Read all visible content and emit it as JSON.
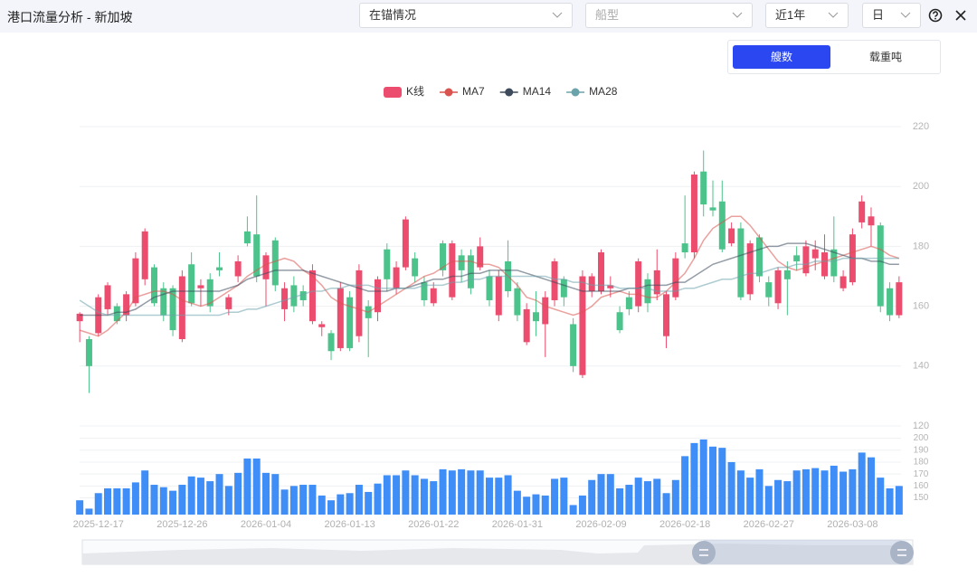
{
  "header": {
    "title": "港口流量分析 - 新加坡",
    "filters": [
      "在锚情况",
      "船型",
      "近1年",
      "日"
    ],
    "toggle": [
      "艘数",
      "载重吨"
    ]
  },
  "chart_data": [
    {
      "type": "candlestick",
      "ylim": [
        120,
        220
      ],
      "yticks": [
        120,
        140,
        160,
        180,
        200,
        220
      ],
      "grid": true,
      "series": [
        {
          "name": "K线",
          "type": "candlestick",
          "up_color": "#ec4c6e",
          "down_color": "#4cc38a",
          "open": [
            155,
            149,
            151,
            159,
            160,
            157,
            161,
            169,
            173,
            166,
            166,
            149,
            174,
            166,
            169,
            173,
            159,
            170,
            185,
            184,
            169,
            182,
            159,
            167,
            165,
            155,
            153,
            151,
            146,
            163,
            150,
            160,
            158,
            179,
            166,
            173,
            176,
            168,
            161,
            181,
            163,
            177,
            177,
            173,
            170,
            157,
            175,
            166,
            148,
            158,
            154,
            162,
            169,
            154,
            137,
            165,
            165,
            166,
            158,
            163,
            160,
            169,
            164,
            150,
            163,
            181,
            178,
            205,
            193,
            195,
            181,
            186,
            164,
            183,
            168,
            161,
            172,
            177,
            171,
            176,
            170,
            179,
            166,
            168,
            188,
            187,
            187,
            166,
            157
          ],
          "close": [
            157.5,
            140,
            163,
            167,
            155,
            164,
            176,
            185,
            161,
            157,
            152,
            170,
            161,
            167,
            160,
            172,
            163,
            175,
            181,
            170,
            177,
            167,
            166,
            160,
            162,
            172,
            154,
            145,
            166,
            146,
            172,
            156,
            169,
            169,
            173,
            189,
            170,
            162,
            166,
            172,
            181,
            172,
            166,
            180,
            162,
            170,
            165,
            157,
            159,
            155,
            163,
            175,
            163,
            140,
            170,
            170,
            178,
            167,
            152,
            159,
            175,
            161,
            172,
            164,
            176,
            178,
            204,
            194,
            192,
            179,
            186,
            163,
            181,
            170,
            163,
            172,
            169,
            175,
            180,
            179,
            178,
            170,
            170,
            184,
            195,
            190,
            160,
            157,
            168
          ],
          "high": [
            158,
            150,
            164,
            168,
            161,
            165,
            178,
            186,
            174,
            168,
            167,
            172,
            178,
            169,
            171,
            178,
            164,
            177,
            190,
            197,
            178,
            183,
            168,
            170,
            167,
            174,
            155,
            152,
            168,
            165,
            174,
            162,
            170,
            181,
            175,
            190,
            178,
            170,
            168,
            182,
            182,
            179,
            179,
            183,
            172,
            172,
            182,
            168,
            161,
            165,
            165,
            176,
            170,
            156,
            172,
            171,
            179,
            170,
            160,
            165,
            176,
            171,
            179,
            165,
            178,
            197,
            205,
            212,
            202,
            202,
            188,
            188,
            182,
            184,
            170,
            173,
            175,
            180,
            182,
            182,
            184,
            190,
            172,
            186,
            197,
            193,
            188,
            168,
            170
          ],
          "low": [
            148,
            131,
            150,
            157,
            154,
            155,
            160,
            167,
            160,
            155,
            150,
            148,
            160,
            160,
            158,
            170,
            157,
            168,
            180,
            168,
            160,
            165,
            155,
            158,
            160,
            154,
            150,
            142,
            145,
            145,
            148,
            143,
            155,
            165,
            164,
            172,
            168,
            160,
            160,
            170,
            162,
            168,
            164,
            172,
            160,
            155,
            163,
            155,
            147,
            150,
            143,
            160,
            160,
            138,
            136,
            163,
            164,
            163,
            151,
            157,
            158,
            158,
            162,
            146,
            162,
            176,
            176,
            190,
            190,
            178,
            180,
            162,
            162,
            168,
            160,
            159,
            157,
            172,
            170,
            172,
            169,
            168,
            165,
            167,
            186,
            180,
            158,
            155,
            156
          ]
        },
        {
          "name": "MA7",
          "type": "line",
          "color": "#d9534f",
          "values": [
            152,
            151,
            150,
            152,
            155,
            158,
            163,
            164,
            165,
            165,
            164,
            162,
            161,
            160,
            161,
            163,
            165,
            167,
            170,
            172,
            174,
            175,
            176,
            175,
            172,
            170,
            167,
            163,
            161,
            160,
            159,
            158,
            160,
            162,
            164,
            166,
            168,
            170,
            171,
            173,
            175,
            175,
            175,
            174,
            174,
            173,
            170,
            167,
            163,
            162,
            160,
            159,
            158,
            157,
            158,
            160,
            163,
            164,
            165,
            164,
            164,
            163,
            163,
            165,
            168,
            171,
            176,
            182,
            186,
            188,
            190,
            190,
            187,
            183,
            179,
            175,
            173,
            172,
            173,
            174,
            175,
            176,
            177,
            178,
            179,
            180,
            179,
            177,
            176
          ]
        },
        {
          "name": "MA14",
          "type": "line",
          "color": "#3d4b5c",
          "values": [
            157,
            157,
            157,
            157,
            158,
            158,
            159,
            161,
            163,
            164,
            165,
            165,
            165,
            165,
            165,
            165,
            166,
            167,
            169,
            170,
            171,
            172,
            172,
            172,
            172,
            171,
            170,
            169,
            168,
            167,
            166,
            165,
            165,
            165,
            166,
            166,
            167,
            168,
            169,
            169,
            170,
            170,
            171,
            171,
            172,
            172,
            172,
            172,
            171,
            170,
            169,
            168,
            167,
            166,
            165,
            165,
            165,
            165,
            165,
            166,
            166,
            167,
            167,
            167,
            168,
            168,
            170,
            172,
            174,
            175,
            176,
            177,
            178,
            179,
            180,
            180,
            181,
            181,
            181,
            180,
            179,
            178,
            177,
            176,
            176,
            175,
            175,
            174,
            174
          ]
        },
        {
          "name": "MA28",
          "type": "line",
          "color": "#6ba3ab",
          "values": [
            162,
            160,
            158,
            157,
            157,
            157,
            157,
            157,
            157,
            157,
            157,
            157,
            157,
            157,
            157,
            157,
            158,
            158,
            159,
            159,
            160,
            161,
            162,
            163,
            164,
            165,
            165,
            166,
            166,
            167,
            167,
            167,
            166,
            166,
            166,
            166,
            166,
            167,
            167,
            167,
            168,
            168,
            169,
            169,
            170,
            170,
            170,
            170,
            170,
            170,
            170,
            169,
            169,
            168,
            168,
            167,
            167,
            167,
            166,
            166,
            166,
            166,
            165,
            165,
            165,
            166,
            166,
            167,
            168,
            169,
            169,
            170,
            171,
            171,
            172,
            173,
            173,
            174,
            174,
            175,
            175,
            175,
            176,
            176,
            176,
            176,
            176,
            176,
            176
          ]
        }
      ]
    },
    {
      "type": "bar",
      "color": "#3f8ef7",
      "ylim": [
        136,
        205
      ],
      "yticks": [
        150,
        160,
        170,
        180,
        190,
        200
      ],
      "grid": true,
      "categories": [
        null,
        null,
        "2025-12-17",
        null,
        null,
        null,
        null,
        null,
        null,
        null,
        null,
        "2025-12-26",
        null,
        null,
        null,
        null,
        null,
        null,
        null,
        null,
        "2026-01-04",
        null,
        null,
        null,
        null,
        null,
        null,
        null,
        null,
        "2026-01-13",
        null,
        null,
        null,
        null,
        null,
        null,
        null,
        null,
        "2026-01-22",
        null,
        null,
        null,
        null,
        null,
        null,
        null,
        null,
        "2026-01-31",
        null,
        null,
        null,
        null,
        null,
        null,
        null,
        null,
        "2026-02-09",
        null,
        null,
        null,
        null,
        null,
        null,
        null,
        null,
        "2026-02-18",
        null,
        null,
        null,
        null,
        null,
        null,
        null,
        null,
        "2026-02-27",
        null,
        null,
        null,
        null,
        null,
        null,
        null,
        null,
        "2026-03-08",
        null,
        null,
        null,
        null,
        null
      ],
      "values": [
        148,
        141,
        154,
        158,
        158,
        158,
        163,
        173,
        161,
        159,
        156,
        161,
        168,
        167,
        164,
        170,
        160,
        171,
        183,
        183,
        171,
        170,
        157,
        160,
        161,
        161,
        152,
        148,
        153,
        154,
        161,
        155,
        162,
        169,
        169,
        173,
        169,
        166,
        164,
        174,
        173,
        174,
        173,
        173,
        167,
        167,
        169,
        156,
        151,
        153,
        152,
        166,
        167,
        144,
        152,
        165,
        170,
        170,
        158,
        161,
        167,
        164,
        166,
        154,
        165,
        185,
        196,
        199,
        193,
        192,
        180,
        173,
        167,
        174,
        160,
        165,
        164,
        173,
        174,
        175,
        173,
        177,
        172,
        174,
        188,
        184,
        167,
        158,
        160
      ]
    }
  ]
}
